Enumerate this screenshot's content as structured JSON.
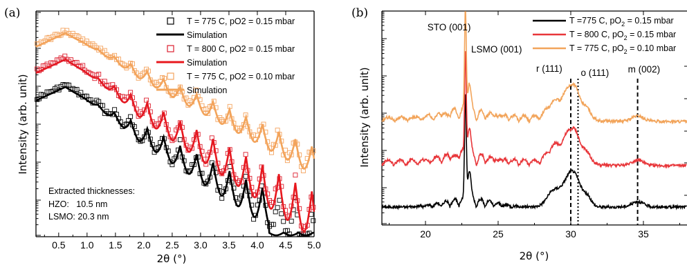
{
  "chart_data": [
    {
      "panel": "(a)",
      "type": "scatter",
      "xlabel": "2θ (°)",
      "ylabel": "Intensity (arb. unit)",
      "xlim": [
        0.1,
        5.0
      ],
      "xticks": [
        "0.5",
        "1.0",
        "1.5",
        "2.0",
        "2.5",
        "3.0",
        "3.5",
        "4.0",
        "4.5",
        "5.0"
      ],
      "xtick_values": [
        0.5,
        1.0,
        1.5,
        2.0,
        2.5,
        3.0,
        3.5,
        4.0,
        4.5,
        5.0
      ],
      "yscale": "log",
      "legend_position": "top-right",
      "series": [
        {
          "name": "T = 775 C, pO2 = 0.15 mbar",
          "marker": "open-square",
          "color": "#000000",
          "x": [
            0.1,
            0.3,
            0.5,
            0.7,
            0.9,
            1.1,
            1.3,
            1.5,
            1.7,
            1.9,
            2.1,
            2.3,
            2.5,
            2.7,
            2.9,
            3.1,
            3.3,
            3.5,
            3.7,
            3.9,
            4.1,
            4.3,
            4.5,
            4.7,
            4.9
          ],
          "y": [
            0.62,
            0.7,
            0.76,
            0.78,
            0.7,
            0.6,
            0.55,
            0.52,
            0.48,
            0.45,
            0.42,
            0.4,
            0.37,
            0.35,
            0.33,
            0.31,
            0.29,
            0.27,
            0.26,
            0.24,
            0.22,
            0.22,
            0.21,
            0.2,
            0.2
          ]
        },
        {
          "name": "Simulation",
          "line": "solid",
          "color": "#000000",
          "role": "sim-1"
        },
        {
          "name": "T = 800 C, pO2 = 0.15 mbar",
          "marker": "open-square",
          "color": "#dd1f2e",
          "x": [
            0.1,
            0.3,
            0.5,
            0.7,
            0.9,
            1.1,
            1.3,
            1.5,
            1.7,
            1.9,
            2.1,
            2.3,
            2.5,
            2.7,
            2.9,
            3.1,
            3.3,
            3.5,
            3.7,
            3.9,
            4.1,
            4.3,
            4.5,
            4.7,
            4.9
          ],
          "y": [
            0.76,
            0.82,
            0.86,
            0.87,
            0.8,
            0.7,
            0.66,
            0.62,
            0.58,
            0.55,
            0.52,
            0.5,
            0.47,
            0.45,
            0.43,
            0.41,
            0.4,
            0.38,
            0.37,
            0.36,
            0.35,
            0.34,
            0.33,
            0.32,
            0.32
          ]
        },
        {
          "name": "Simulation",
          "line": "solid",
          "color": "#e8171d",
          "role": "sim-2"
        },
        {
          "name": "T = 775 C, pO2 = 0.10 mbar",
          "marker": "open-square",
          "color": "#f4a35e",
          "x": [
            0.1,
            0.3,
            0.5,
            0.7,
            0.9,
            1.1,
            1.3,
            1.5,
            1.7,
            1.9,
            2.1,
            2.3,
            2.5,
            2.7,
            2.9,
            3.1,
            3.3,
            3.5,
            3.7,
            3.9,
            4.1,
            4.3,
            4.5,
            4.7,
            4.9
          ],
          "y": [
            0.88,
            0.93,
            0.97,
            0.98,
            0.92,
            0.83,
            0.79,
            0.75,
            0.72,
            0.69,
            0.66,
            0.64,
            0.62,
            0.6,
            0.58,
            0.56,
            0.55,
            0.53,
            0.52,
            0.51,
            0.5,
            0.49,
            0.48,
            0.47,
            0.47
          ]
        },
        {
          "name": "Simulation",
          "line": "solid",
          "color": "#f2a45a",
          "role": "sim-3"
        }
      ],
      "annotation": {
        "heading": "Extracted thicknesses:",
        "line1": "HZO:   10.5 nm",
        "line2": "LSMO: 20.3 nm"
      }
    },
    {
      "panel": "(b)",
      "type": "line",
      "xlabel": "2θ (°)",
      "ylabel": "Intensity (arb. unit)",
      "xlim": [
        17,
        38
      ],
      "xticks": [
        "20",
        "25",
        "30",
        "35"
      ],
      "xtick_values": [
        20,
        25,
        30,
        35
      ],
      "legend_position": "top-right",
      "series": [
        {
          "name_prefix": "T =775 C, pO",
          "name_sub": "2",
          "name_suffix": " = 0.15 mbar",
          "color": "#000000"
        },
        {
          "name_prefix": "T = 800 C, pO",
          "name_sub": "2",
          "name_suffix": " = 0.15 mbar",
          "color": "#e8363a"
        },
        {
          "name_prefix": "T = 775 C, pO",
          "name_sub": "2",
          "name_suffix": " = 0.10 mbar",
          "color": "#f2a45a"
        }
      ],
      "annotations": [
        {
          "text": "STO (001)",
          "x": 22.75
        },
        {
          "text": "LSMO (001)",
          "x": 23.0
        },
        {
          "text": "r (111)",
          "x": 30.0,
          "line": "dashed"
        },
        {
          "text": "o (111)",
          "x": 30.5,
          "line": "dotted"
        },
        {
          "text": "m (002)",
          "x": 34.6,
          "line": "dashed"
        }
      ]
    }
  ]
}
